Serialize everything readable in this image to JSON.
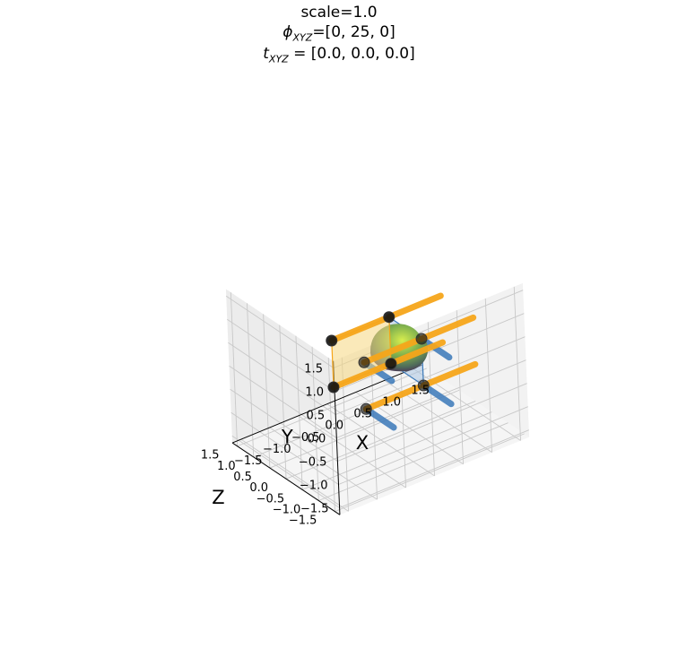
{
  "chart_data": {
    "type": "3d-scatter-surface",
    "title_lines": [
      "scale=1.0",
      "ϕ_XYZ=[0, 25, 0]",
      "t_XYZ = [0.0, 0.0, 0.0]"
    ],
    "title": {
      "scale": "scale=1.0",
      "phi_symbol": "ϕ",
      "phi_sub": "XYZ",
      "phi_value": "=[0, 25, 0]",
      "t_symbol": "t",
      "t_sub": "XYZ",
      "t_value": " = [0.0, 0.0, 0.0]"
    },
    "xlabel": "X",
    "ylabel": "Y",
    "zlabel": "Z",
    "xlim": [
      -1.5,
      1.5
    ],
    "ylim": [
      -1.5,
      1.5
    ],
    "zlim": [
      -1.5,
      1.5
    ],
    "x_ticks": [
      "−1.5",
      "−1.0",
      "−0.5",
      "0.0",
      "0.5",
      "1.0",
      "1.5"
    ],
    "y_ticks": [
      "−1.5",
      "−1.0",
      "−0.5",
      "0.0",
      "0.5",
      "1.0",
      "1.5"
    ],
    "z_ticks": [
      "−1.5",
      "−1.0",
      "−0.5",
      "0.0",
      "0.5",
      "1.0",
      "1.5"
    ],
    "grid": true,
    "rotation_deg": [
      0,
      25,
      0
    ],
    "translation": [
      0.0,
      0.0,
      0.0
    ],
    "cube_corners": [
      [
        -0.5,
        0.5,
        0.5
      ],
      [
        0.5,
        0.5,
        0.5
      ],
      [
        0.5,
        0.5,
        -0.5
      ],
      [
        -0.5,
        0.5,
        -0.5
      ],
      [
        -0.5,
        -0.5,
        0.5
      ],
      [
        0.5,
        -0.5,
        0.5
      ],
      [
        0.5,
        -0.5,
        -0.5
      ],
      [
        -0.5,
        -0.5,
        -0.5
      ]
    ],
    "segments_orange": "x-direction",
    "segments_blue": "z-direction",
    "colors": {
      "orange": "#f5a51a",
      "blue": "#3a78b8",
      "orange_face": "#f5d77f",
      "blue_face": "#a9c4e2",
      "point": "#111111",
      "blob": [
        "#5a2d5c",
        "#7a9a4a",
        "#c8e04a"
      ]
    }
  }
}
